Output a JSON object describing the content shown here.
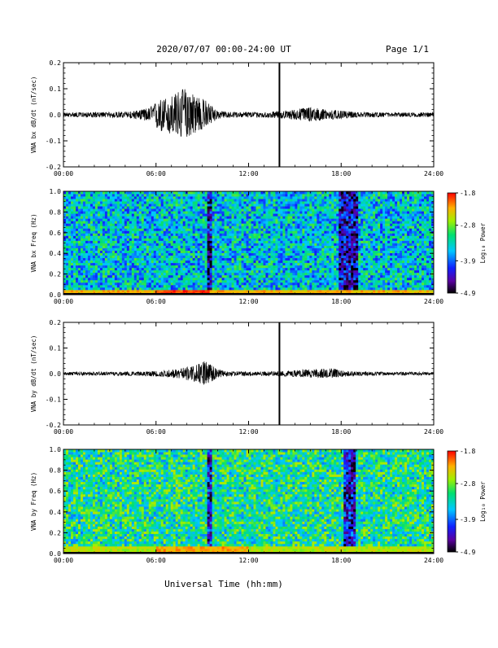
{
  "header": {
    "title": "2020/07/07  00:00-24:00 UT",
    "page": "Page 1/1"
  },
  "x_axis": {
    "label": "Universal Time (hh:mm)",
    "range_hours": [
      0,
      24
    ],
    "tick_hours": [
      0,
      6,
      12,
      18,
      24
    ],
    "tick_labels": [
      "00:00",
      "06:00",
      "12:00",
      "18:00",
      "24:00"
    ]
  },
  "colorbar": {
    "label": "Log₁₀ Power",
    "range": [
      -4.9,
      -1.8
    ],
    "tick_values": [
      -1.8,
      -2.8,
      -3.9,
      -4.9
    ],
    "tick_labels": [
      "-1.8",
      "-2.8",
      "-3.9",
      "-4.9"
    ]
  },
  "chart_data": [
    {
      "id": "bx_timeseries",
      "type": "line",
      "ylabel": "VNA bx dB/dt (nT/sec)",
      "ylim": [
        -0.2,
        0.2
      ],
      "y_tick_values": [
        0.2,
        0.1,
        0.0,
        -0.1,
        -0.2
      ],
      "y_tick_labels": [
        "0.2",
        "0.1",
        "0.0",
        "-0.1",
        "-0.2"
      ],
      "baseline": 0.0,
      "envelope": {
        "x_hours": [
          0,
          3,
          4.5,
          5.5,
          6.2,
          7,
          7.8,
          8.5,
          9.2,
          10,
          11,
          13,
          14.5,
          16,
          17,
          18,
          19,
          21,
          24
        ],
        "upper": [
          0.008,
          0.01,
          0.013,
          0.025,
          0.055,
          0.07,
          0.1,
          0.08,
          0.055,
          0.015,
          0.01,
          0.01,
          0.015,
          0.03,
          0.02,
          0.015,
          0.01,
          0.008,
          0.008
        ],
        "lower": [
          -0.008,
          -0.01,
          -0.013,
          -0.025,
          -0.06,
          -0.075,
          -0.09,
          -0.07,
          -0.05,
          -0.015,
          -0.01,
          -0.01,
          -0.015,
          -0.025,
          -0.02,
          -0.015,
          -0.01,
          -0.008,
          -0.008
        ]
      },
      "spike_hour": 14.0
    },
    {
      "id": "bx_spectrogram",
      "type": "heatmap",
      "ylabel": "VNA bx Freq (Hz)",
      "ylim": [
        0.0,
        1.0
      ],
      "y_tick_values": [
        1.0,
        0.8,
        0.6,
        0.4,
        0.2,
        0.0
      ],
      "y_tick_labels": [
        "1.0",
        "0.8",
        "0.6",
        "0.4",
        "0.2",
        "0.0"
      ],
      "zlim": [
        -4.9,
        -1.8
      ],
      "background_level": -3.5,
      "low_freq_level": -2.3,
      "low_freq_band": [
        0.0,
        0.04
      ],
      "low_freq_enhanced_hours": [
        6.0,
        9.5
      ],
      "dark_bands_hours": [
        [
          9.4,
          9.6
        ],
        [
          17.9,
          19.1
        ]
      ],
      "dark_level": -4.4
    },
    {
      "id": "by_timeseries",
      "type": "line",
      "ylabel": "VNA by dB/dt (nT/sec)",
      "ylim": [
        -0.2,
        0.2
      ],
      "y_tick_values": [
        0.2,
        0.1,
        0.0,
        -0.1,
        -0.2
      ],
      "y_tick_labels": [
        "0.2",
        "0.1",
        "0.0",
        "-0.1",
        "-0.2"
      ],
      "baseline": 0.0,
      "envelope": {
        "x_hours": [
          0,
          3,
          5,
          6.5,
          7.5,
          8.5,
          9.2,
          10,
          11,
          13,
          14.5,
          16,
          17.5,
          18,
          19,
          21,
          24
        ],
        "upper": [
          0.006,
          0.007,
          0.008,
          0.012,
          0.02,
          0.03,
          0.05,
          0.015,
          0.008,
          0.008,
          0.01,
          0.018,
          0.02,
          0.012,
          0.008,
          0.006,
          0.006
        ],
        "lower": [
          -0.006,
          -0.007,
          -0.008,
          -0.012,
          -0.02,
          -0.03,
          -0.045,
          -0.015,
          -0.008,
          -0.008,
          -0.01,
          -0.015,
          -0.018,
          -0.012,
          -0.008,
          -0.006,
          -0.006
        ]
      },
      "spike_hour": 14.0
    },
    {
      "id": "by_spectrogram",
      "type": "heatmap",
      "ylabel": "VNA by Freq (Hz)",
      "ylim": [
        0.0,
        1.0
      ],
      "y_tick_values": [
        1.0,
        0.8,
        0.6,
        0.4,
        0.2,
        0.0
      ],
      "y_tick_labels": [
        "1.0",
        "0.8",
        "0.6",
        "0.4",
        "0.2",
        "0.0"
      ],
      "zlim": [
        -4.9,
        -1.8
      ],
      "background_level": -3.2,
      "low_freq_level": -2.6,
      "low_freq_band": [
        0.0,
        0.05
      ],
      "low_freq_enhanced_hours": [
        6.0,
        12.0
      ],
      "dark_bands_hours": [
        [
          9.4,
          9.55
        ],
        [
          18.2,
          18.9
        ]
      ],
      "dark_level": -4.3
    }
  ]
}
